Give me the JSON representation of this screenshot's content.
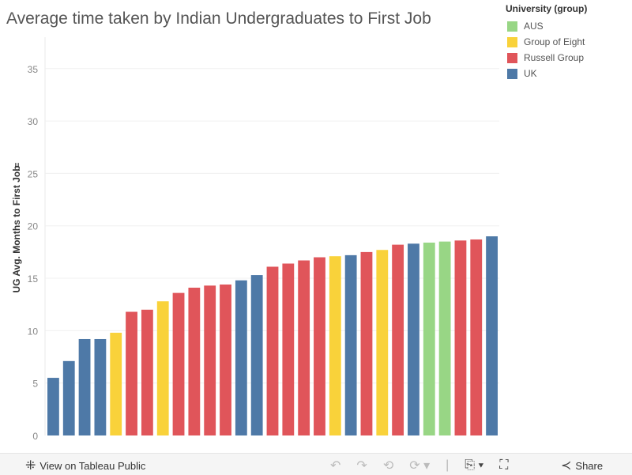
{
  "chart_data": {
    "type": "bar",
    "title": "Average time taken by Indian Undergraduates to First Job",
    "xlabel": "",
    "ylabel": "UG Avg. Months to First Job",
    "ylim": [
      0,
      38
    ],
    "yticks": [
      "0",
      "5",
      "10",
      "15",
      "20",
      "25",
      "30",
      "35"
    ],
    "grid": true,
    "legend_position": "top-right",
    "legend_title": "University (group)",
    "legend": [
      {
        "name": "AUS",
        "color": "#98d685"
      },
      {
        "name": "Group of Eight",
        "color": "#f9d23a"
      },
      {
        "name": "Russell Group",
        "color": "#e0555a"
      },
      {
        "name": "UK",
        "color": "#4e79a7"
      }
    ],
    "bars": [
      {
        "group": "UK",
        "value": 5.5
      },
      {
        "group": "UK",
        "value": 7.1
      },
      {
        "group": "UK",
        "value": 9.2
      },
      {
        "group": "UK",
        "value": 9.2
      },
      {
        "group": "Group of Eight",
        "value": 9.8
      },
      {
        "group": "Russell Group",
        "value": 11.8
      },
      {
        "group": "Russell Group",
        "value": 12.0
      },
      {
        "group": "Group of Eight",
        "value": 12.8
      },
      {
        "group": "Russell Group",
        "value": 13.6
      },
      {
        "group": "Russell Group",
        "value": 14.1
      },
      {
        "group": "Russell Group",
        "value": 14.3
      },
      {
        "group": "Russell Group",
        "value": 14.4
      },
      {
        "group": "UK",
        "value": 14.8
      },
      {
        "group": "UK",
        "value": 15.3
      },
      {
        "group": "Russell Group",
        "value": 16.1
      },
      {
        "group": "Russell Group",
        "value": 16.4
      },
      {
        "group": "Russell Group",
        "value": 16.7
      },
      {
        "group": "Russell Group",
        "value": 17.0
      },
      {
        "group": "Group of Eight",
        "value": 17.1
      },
      {
        "group": "UK",
        "value": 17.2
      },
      {
        "group": "Russell Group",
        "value": 17.5
      },
      {
        "group": "Group of Eight",
        "value": 17.7
      },
      {
        "group": "Russell Group",
        "value": 18.2
      },
      {
        "group": "UK",
        "value": 18.3
      },
      {
        "group": "AUS",
        "value": 18.4
      },
      {
        "group": "AUS",
        "value": 18.5
      },
      {
        "group": "Russell Group",
        "value": 18.6
      },
      {
        "group": "Russell Group",
        "value": 18.7
      },
      {
        "group": "UK",
        "value": 19.0
      }
    ]
  },
  "toolbar": {
    "view_label": "View on Tableau Public",
    "share_label": "Share"
  }
}
